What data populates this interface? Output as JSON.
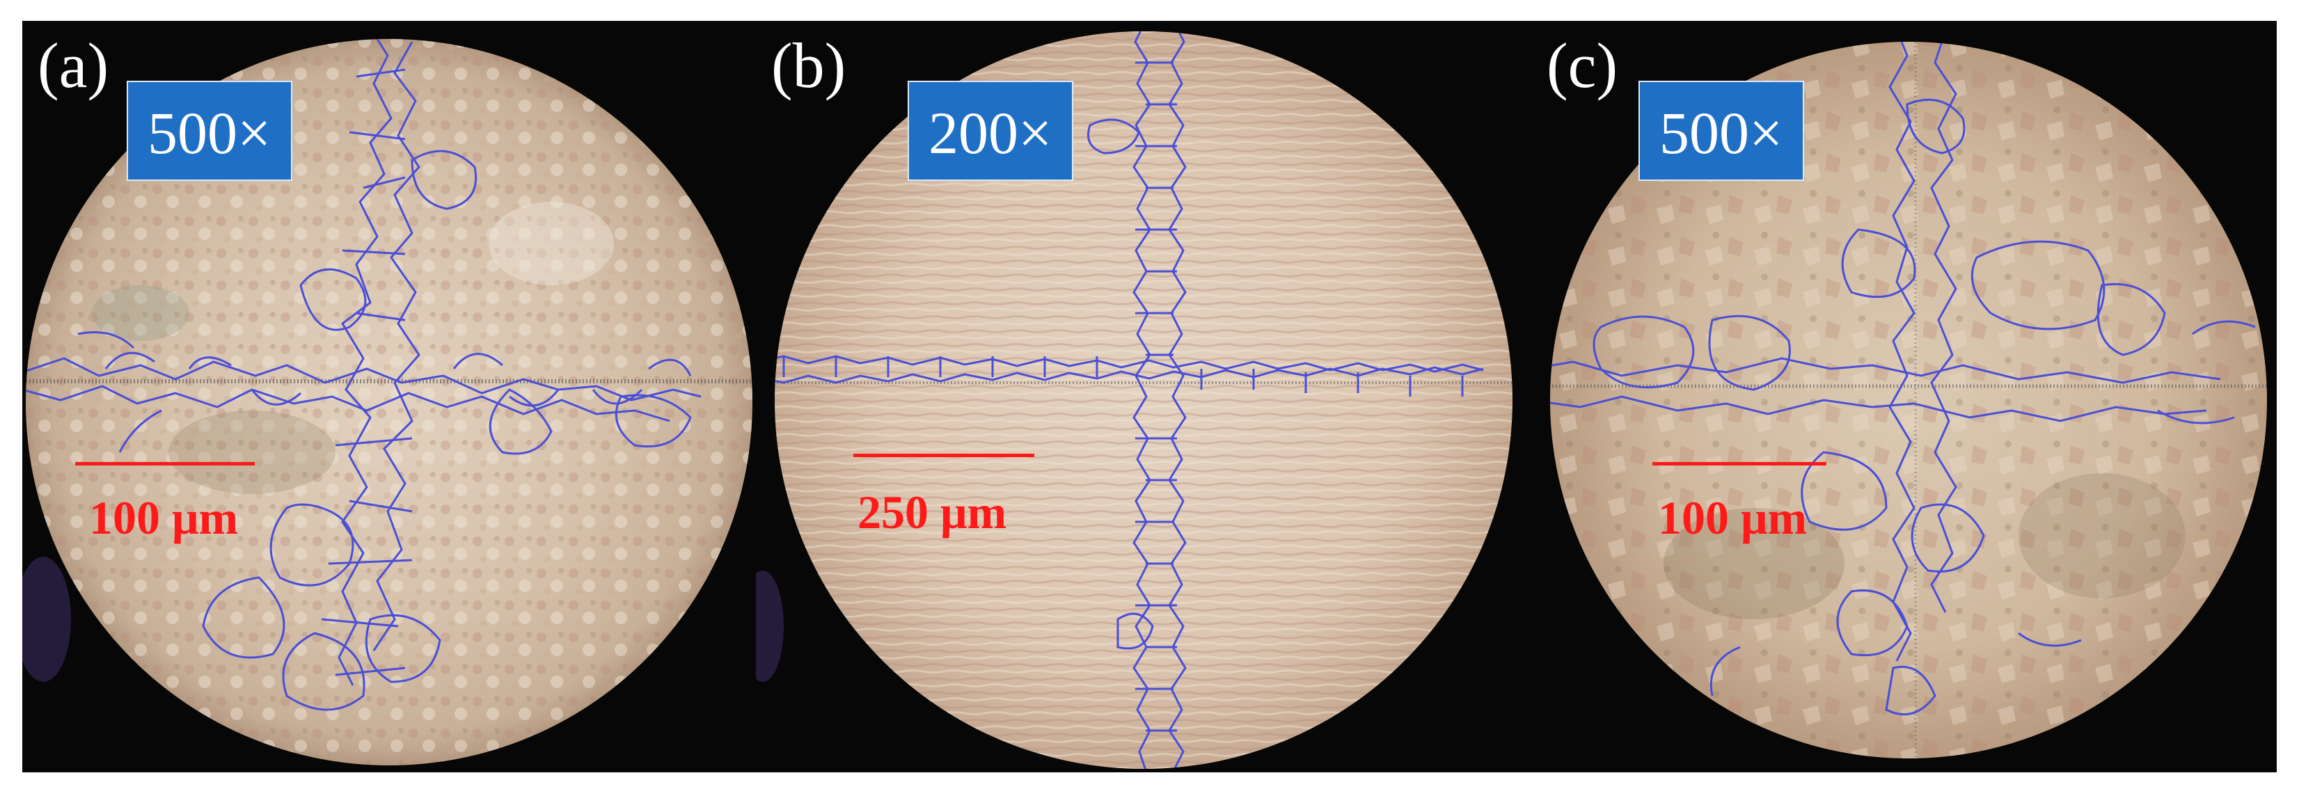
{
  "panels": [
    {
      "label": "(a)",
      "magnification": "500×",
      "scale_bar": "100 μm"
    },
    {
      "label": "(b)",
      "magnification": "200×",
      "scale_bar": "250 μm"
    },
    {
      "label": "(c)",
      "magnification": "500×",
      "scale_bar": "100 μm"
    }
  ],
  "colors": {
    "background": "#0a0a0a",
    "tissue": "#d9c8b4",
    "grain_boundary": "#4b4fd6",
    "label_box": "#1f6fc5",
    "scale_bar": "#ff1a1a"
  }
}
